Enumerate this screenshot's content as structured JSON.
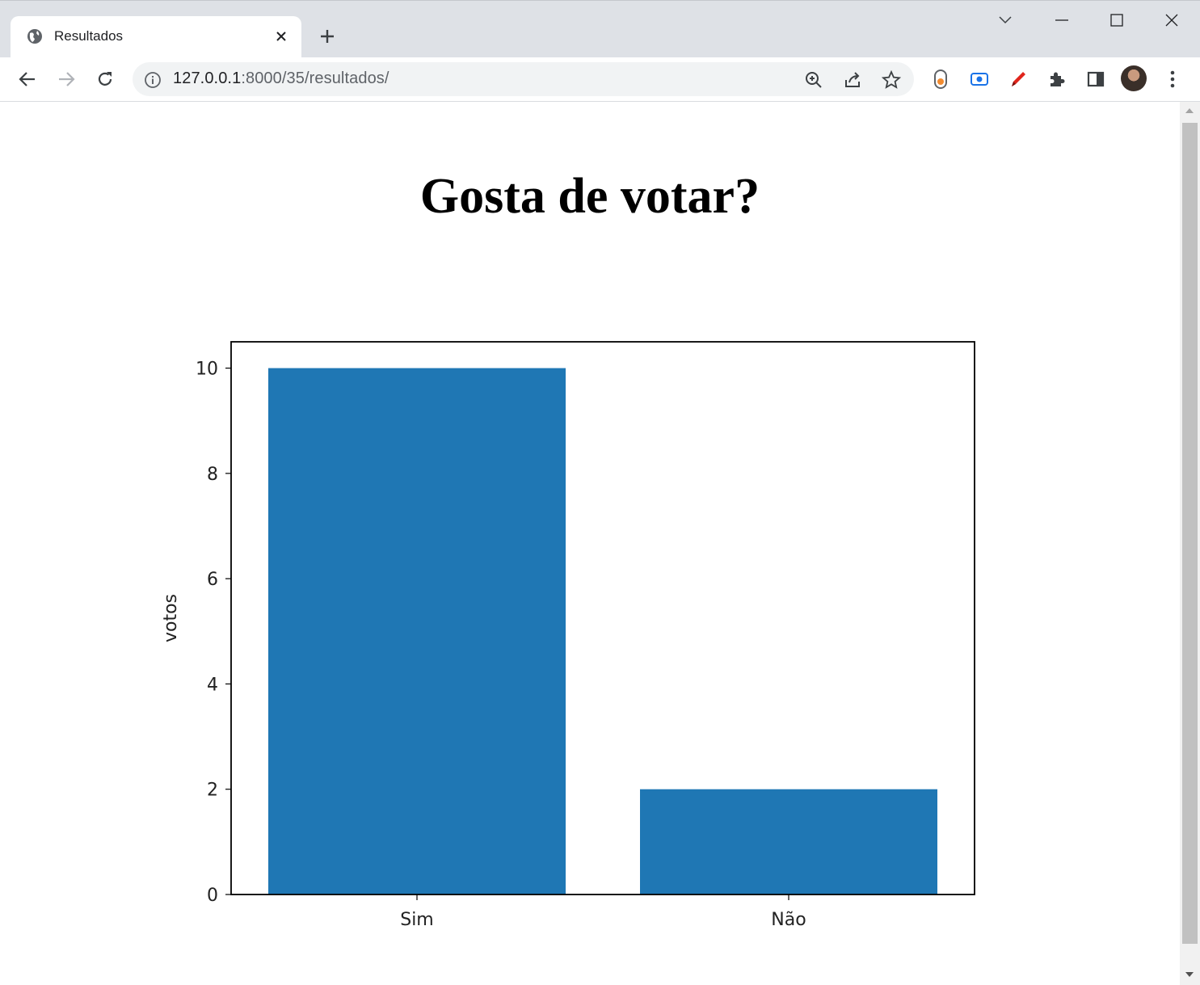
{
  "browser": {
    "tab_title": "Resultados",
    "url_host": "127.0.0.1",
    "url_rest": ":8000/35/resultados/"
  },
  "page": {
    "title": "Gosta de votar?"
  },
  "chart_data": {
    "type": "bar",
    "categories": [
      "Sim",
      "Não"
    ],
    "values": [
      10,
      2
    ],
    "ylabel": "votos",
    "xlabel": "",
    "title": "",
    "ylim": [
      0,
      10.5
    ],
    "yticks": [
      0,
      2,
      4,
      6,
      8,
      10
    ],
    "bar_color": "#1f77b4",
    "grid": false
  }
}
